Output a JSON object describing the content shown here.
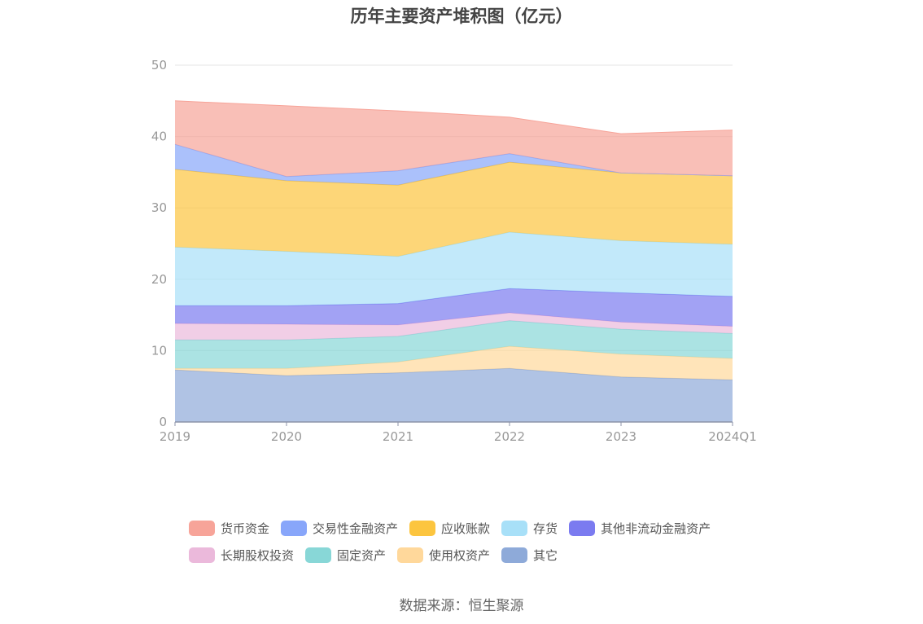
{
  "title": "历年主要资产堆积图（亿元）",
  "source": "数据来源：恒生聚源",
  "chart_data": {
    "type": "area",
    "stacked": true,
    "title": "历年主要资产堆积图（亿元）",
    "categories": [
      "2019",
      "2020",
      "2021",
      "2022",
      "2023",
      "2024Q1"
    ],
    "ylim": [
      0,
      50
    ],
    "yticks": [
      0,
      10,
      20,
      30,
      40,
      50
    ],
    "grid": true,
    "legend_position": "bottom",
    "series": [
      {
        "name": "其它",
        "color": "#8eaad9",
        "values": [
          7.3,
          6.5,
          6.9,
          7.5,
          6.3,
          5.9
        ]
      },
      {
        "name": "使用权资产",
        "color": "#ffd89b",
        "values": [
          0.2,
          1.0,
          1.5,
          3.1,
          3.2,
          3.0
        ]
      },
      {
        "name": "固定资产",
        "color": "#88d7d7",
        "values": [
          4.0,
          4.0,
          3.6,
          3.6,
          3.5,
          3.5
        ]
      },
      {
        "name": "长期股权投资",
        "color": "#ebb9db",
        "values": [
          2.3,
          2.2,
          1.6,
          1.1,
          1.0,
          1.0
        ]
      },
      {
        "name": "其他非流动金融资产",
        "color": "#7b7bf0",
        "values": [
          2.5,
          2.6,
          3.0,
          3.4,
          4.1,
          4.2
        ]
      },
      {
        "name": "存货",
        "color": "#a8e0f8",
        "values": [
          8.2,
          7.6,
          6.6,
          7.9,
          7.3,
          7.3
        ]
      },
      {
        "name": "应收账款",
        "color": "#fcc53f",
        "values": [
          10.9,
          9.9,
          10.0,
          9.8,
          9.5,
          9.6
        ]
      },
      {
        "name": "交易性金融资产",
        "color": "#88a6fa",
        "values": [
          3.5,
          0.6,
          2.0,
          1.2,
          0.0,
          0.0
        ]
      },
      {
        "name": "货币资金",
        "color": "#f7a499",
        "values": [
          6.1,
          9.9,
          8.4,
          5.1,
          5.5,
          6.4
        ]
      }
    ]
  },
  "legend_rows": [
    [
      "货币资金",
      "交易性金融资产",
      "应收账款",
      "存货",
      "其他非流动金融资产"
    ],
    [
      "长期股权投资",
      "固定资产",
      "使用权资产",
      "其它"
    ]
  ]
}
